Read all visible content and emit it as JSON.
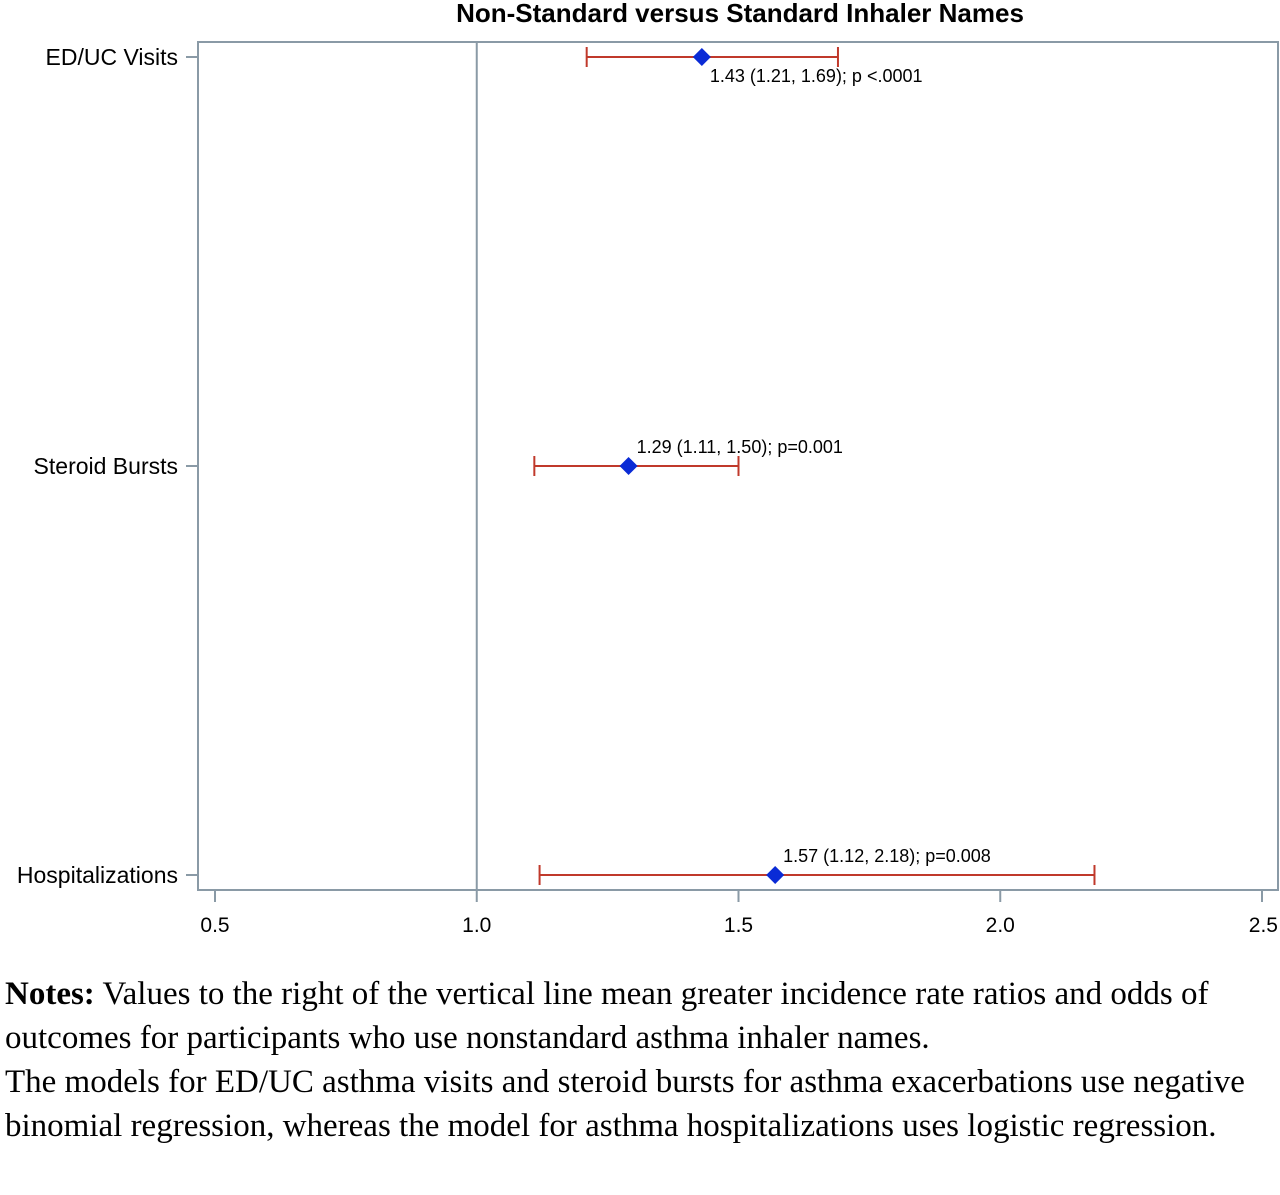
{
  "chart_data": {
    "type": "forest",
    "title": "Non-Standard versus Standard Inhaler Names",
    "xlabel": "",
    "ylabel": "",
    "xlim": [
      0.5,
      2.5
    ],
    "xticks": [
      "0.5",
      "1.0",
      "1.5",
      "2.0",
      "2.5"
    ],
    "reference_line": 1.0,
    "rows": [
      {
        "label": "ED/UC Visits",
        "estimate": 1.43,
        "lower": 1.21,
        "upper": 1.69,
        "annotation": "1.43 (1.21, 1.69); p <.0001",
        "annotation_position": "below"
      },
      {
        "label": "Steroid Bursts",
        "estimate": 1.29,
        "lower": 1.11,
        "upper": 1.5,
        "annotation": "1.29 (1.11, 1.50); p=0.001",
        "annotation_position": "above"
      },
      {
        "label": "Hospitalizations",
        "estimate": 1.57,
        "lower": 1.12,
        "upper": 2.18,
        "annotation": "1.57 (1.12, 2.18); p=0.008",
        "annotation_position": "above"
      }
    ],
    "colors": {
      "marker": "#0a2bd6",
      "whisker": "#c0392b",
      "frame": "#8a9aa6",
      "axis": "#8a9aa6"
    }
  },
  "notes": {
    "heading": "Notes:",
    "line1": " Values to the right of the vertical line mean greater incidence rate ratios and odds of outcomes for participants who use nonstandard asthma inhaler names.",
    "line2": "The models for ED/UC asthma visits and steroid bursts for asthma exacerbations use negative binomial regression, whereas the model for asthma hospitalizations uses logistic regression."
  }
}
